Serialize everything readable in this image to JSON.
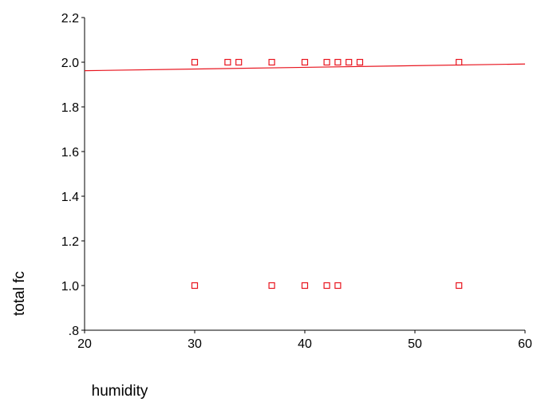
{
  "chart_data": {
    "type": "scatter",
    "title": "",
    "xlabel": "humidity",
    "ylabel": "total fc",
    "xlim": [
      20,
      60
    ],
    "ylim": [
      0.8,
      2.2
    ],
    "xticks": [
      {
        "value": 20,
        "label": "20"
      },
      {
        "value": 30,
        "label": "30"
      },
      {
        "value": 40,
        "label": "40"
      },
      {
        "value": 50,
        "label": "50"
      },
      {
        "value": 60,
        "label": "60"
      }
    ],
    "yticks": [
      {
        "value": 0.8,
        "label": ".8"
      },
      {
        "value": 1.0,
        "label": "1.0"
      },
      {
        "value": 1.2,
        "label": "1.2"
      },
      {
        "value": 1.4,
        "label": "1.4"
      },
      {
        "value": 1.6,
        "label": "1.6"
      },
      {
        "value": 1.8,
        "label": "1.8"
      },
      {
        "value": 2.0,
        "label": "2.0"
      },
      {
        "value": 2.2,
        "label": "2.2"
      }
    ],
    "grid": false,
    "marker": "open-square",
    "color": "#e8141e",
    "points": [
      {
        "x": 30,
        "y": 2.0
      },
      {
        "x": 33,
        "y": 2.0
      },
      {
        "x": 34,
        "y": 2.0
      },
      {
        "x": 37,
        "y": 2.0
      },
      {
        "x": 40,
        "y": 2.0
      },
      {
        "x": 42,
        "y": 2.0
      },
      {
        "x": 43,
        "y": 2.0
      },
      {
        "x": 44,
        "y": 2.0
      },
      {
        "x": 45,
        "y": 2.0
      },
      {
        "x": 54,
        "y": 2.0
      },
      {
        "x": 30,
        "y": 1.0
      },
      {
        "x": 37,
        "y": 1.0
      },
      {
        "x": 40,
        "y": 1.0
      },
      {
        "x": 42,
        "y": 1.0
      },
      {
        "x": 43,
        "y": 1.0
      },
      {
        "x": 54,
        "y": 1.0
      }
    ],
    "fit_line": {
      "x": [
        20,
        60
      ],
      "y": [
        1.962,
        1.992
      ]
    }
  }
}
